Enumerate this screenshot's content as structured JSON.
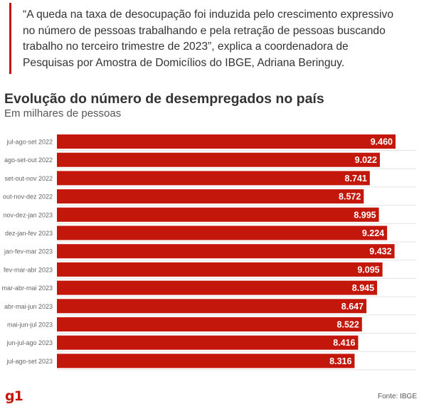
{
  "quote": {
    "lines": [
      "“A queda na taxa de desocupação foi induzida pelo crescimento expressivo",
      "no número de pessoas trabalhando e pela retração de pessoas buscando",
      "trabalho no terceiro trimestre de 2023”, explica a coordenadora de",
      "Pesquisas por Amostra de Domicílios do IBGE, Adriana Beringuy."
    ]
  },
  "footer": {
    "logo": "g1",
    "source": "Fonte: IBGE"
  },
  "colors": {
    "bar": "#c4170c",
    "accent": "#c4170c",
    "grid": "#e3e3e3"
  },
  "chart_data": {
    "type": "bar",
    "orientation": "horizontal",
    "title": "Evolução do número de desempregados no país",
    "subtitle": "Em milhares de pessoas",
    "categories": [
      "jul-ago-set 2022",
      "ago-set-out 2022",
      "set-out-nov 2022",
      "out-nov-dez 2022",
      "nov-dez-jan 2023",
      "dez-jan-fev 2023",
      "jan-fev-mar 2023",
      "fev-mar-abr 2023",
      "mar-abr-mai 2023",
      "abr-mai-jun 2023",
      "mai-jun-jul 2023",
      "jun-jul-ago 2023",
      "jul-ago-set 2023"
    ],
    "values": [
      9460,
      9022,
      8741,
      8572,
      8995,
      9224,
      9432,
      9095,
      8945,
      8647,
      8522,
      8416,
      8316
    ],
    "data_labels": [
      "9.460",
      "9.022",
      "8.741",
      "8.572",
      "8.995",
      "9.224",
      "9.432",
      "9.095",
      "8.945",
      "8.647",
      "8.522",
      "8.416",
      "8.316"
    ],
    "xlim": [
      0,
      9600
    ],
    "grid": true,
    "legend": "none"
  }
}
